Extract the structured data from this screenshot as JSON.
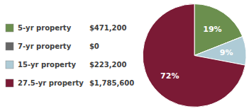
{
  "chart_data": {
    "type": "pie",
    "categories": [
      "5-yr property",
      "7-yr property",
      "15-yr property",
      "27.5-yr property"
    ],
    "values": [
      19,
      0,
      9,
      72
    ],
    "value_labels": [
      "19%",
      null,
      "9%",
      "72%"
    ],
    "dollar_values": [
      "$471,200",
      "$0",
      "$223,200",
      "$1,785,600"
    ],
    "colors": [
      "#6b8f4e",
      "#666666",
      "#aecbd6",
      "#7b1a35"
    ],
    "data_labels": true,
    "legend": "left"
  }
}
